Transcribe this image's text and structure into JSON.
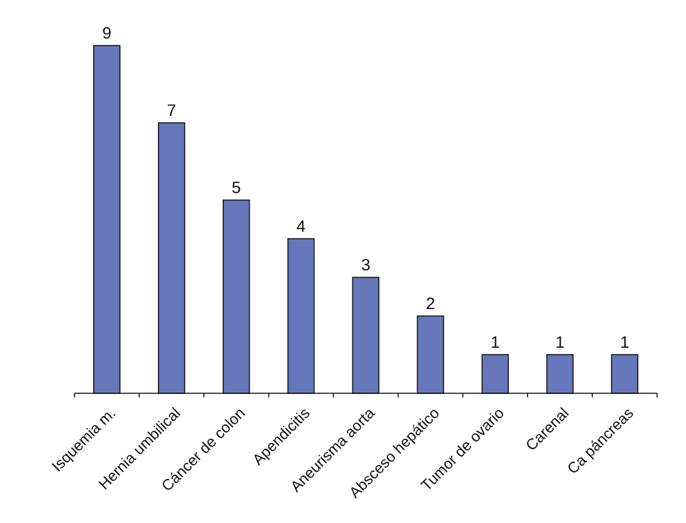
{
  "chart_data": {
    "type": "bar",
    "categories": [
      "Isquemia m.",
      "Hernia umbilical",
      "Cáncer de colon",
      "Apendicitis",
      "Aneurisma aorta",
      "Absceso hepático",
      "Tumor de ovario",
      "Carenal",
      "Ca páncreas"
    ],
    "values": [
      9,
      7,
      5,
      4,
      3,
      2,
      1,
      1,
      1
    ],
    "title": "",
    "xlabel": "",
    "ylabel": "",
    "ylim": [
      0,
      9
    ],
    "grid": false,
    "bar_color": "#6678bb",
    "data_labels": true
  }
}
